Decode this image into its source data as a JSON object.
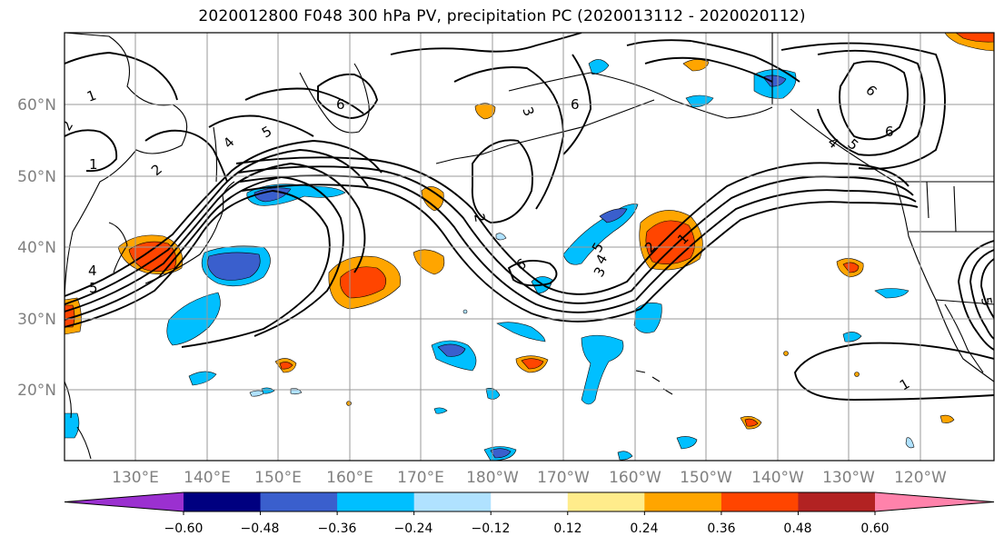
{
  "title": "2020012800 F048 300 hPa PV, precipitation PC (2020013112 - 2020020112)",
  "map": {
    "lat_labels": [
      "60°N",
      "50°N",
      "40°N",
      "30°N",
      "20°N"
    ],
    "lon_labels": [
      "130°E",
      "140°E",
      "150°E",
      "160°E",
      "170°E",
      "180°W",
      "170°W",
      "160°W",
      "150°W",
      "140°W",
      "130°W",
      "120°W"
    ],
    "pv_contour_labels": [
      "1",
      "2",
      "1",
      "2",
      "4",
      "5",
      "4",
      "5",
      "6",
      "3",
      "6",
      "2",
      "6",
      "5",
      "4",
      "3",
      "2",
      "1",
      "6",
      "6",
      "5",
      "4",
      "1",
      "5"
    ]
  },
  "colorbar": {
    "ticks": [
      "−0.60",
      "−0.48",
      "−0.36",
      "−0.24",
      "−0.12",
      "0.12",
      "0.24",
      "0.36",
      "0.48",
      "0.60"
    ],
    "colors": [
      "#9b30d0",
      "#000080",
      "#3a5fcd",
      "#00bfff",
      "#b0e2ff",
      "#ffffff",
      "#ffec8b",
      "#ffa500",
      "#ff4500",
      "#b22222",
      "#ff82ab"
    ]
  },
  "colors": {
    "grid": "#999999",
    "coast": "#000000",
    "contour": "#000000"
  }
}
